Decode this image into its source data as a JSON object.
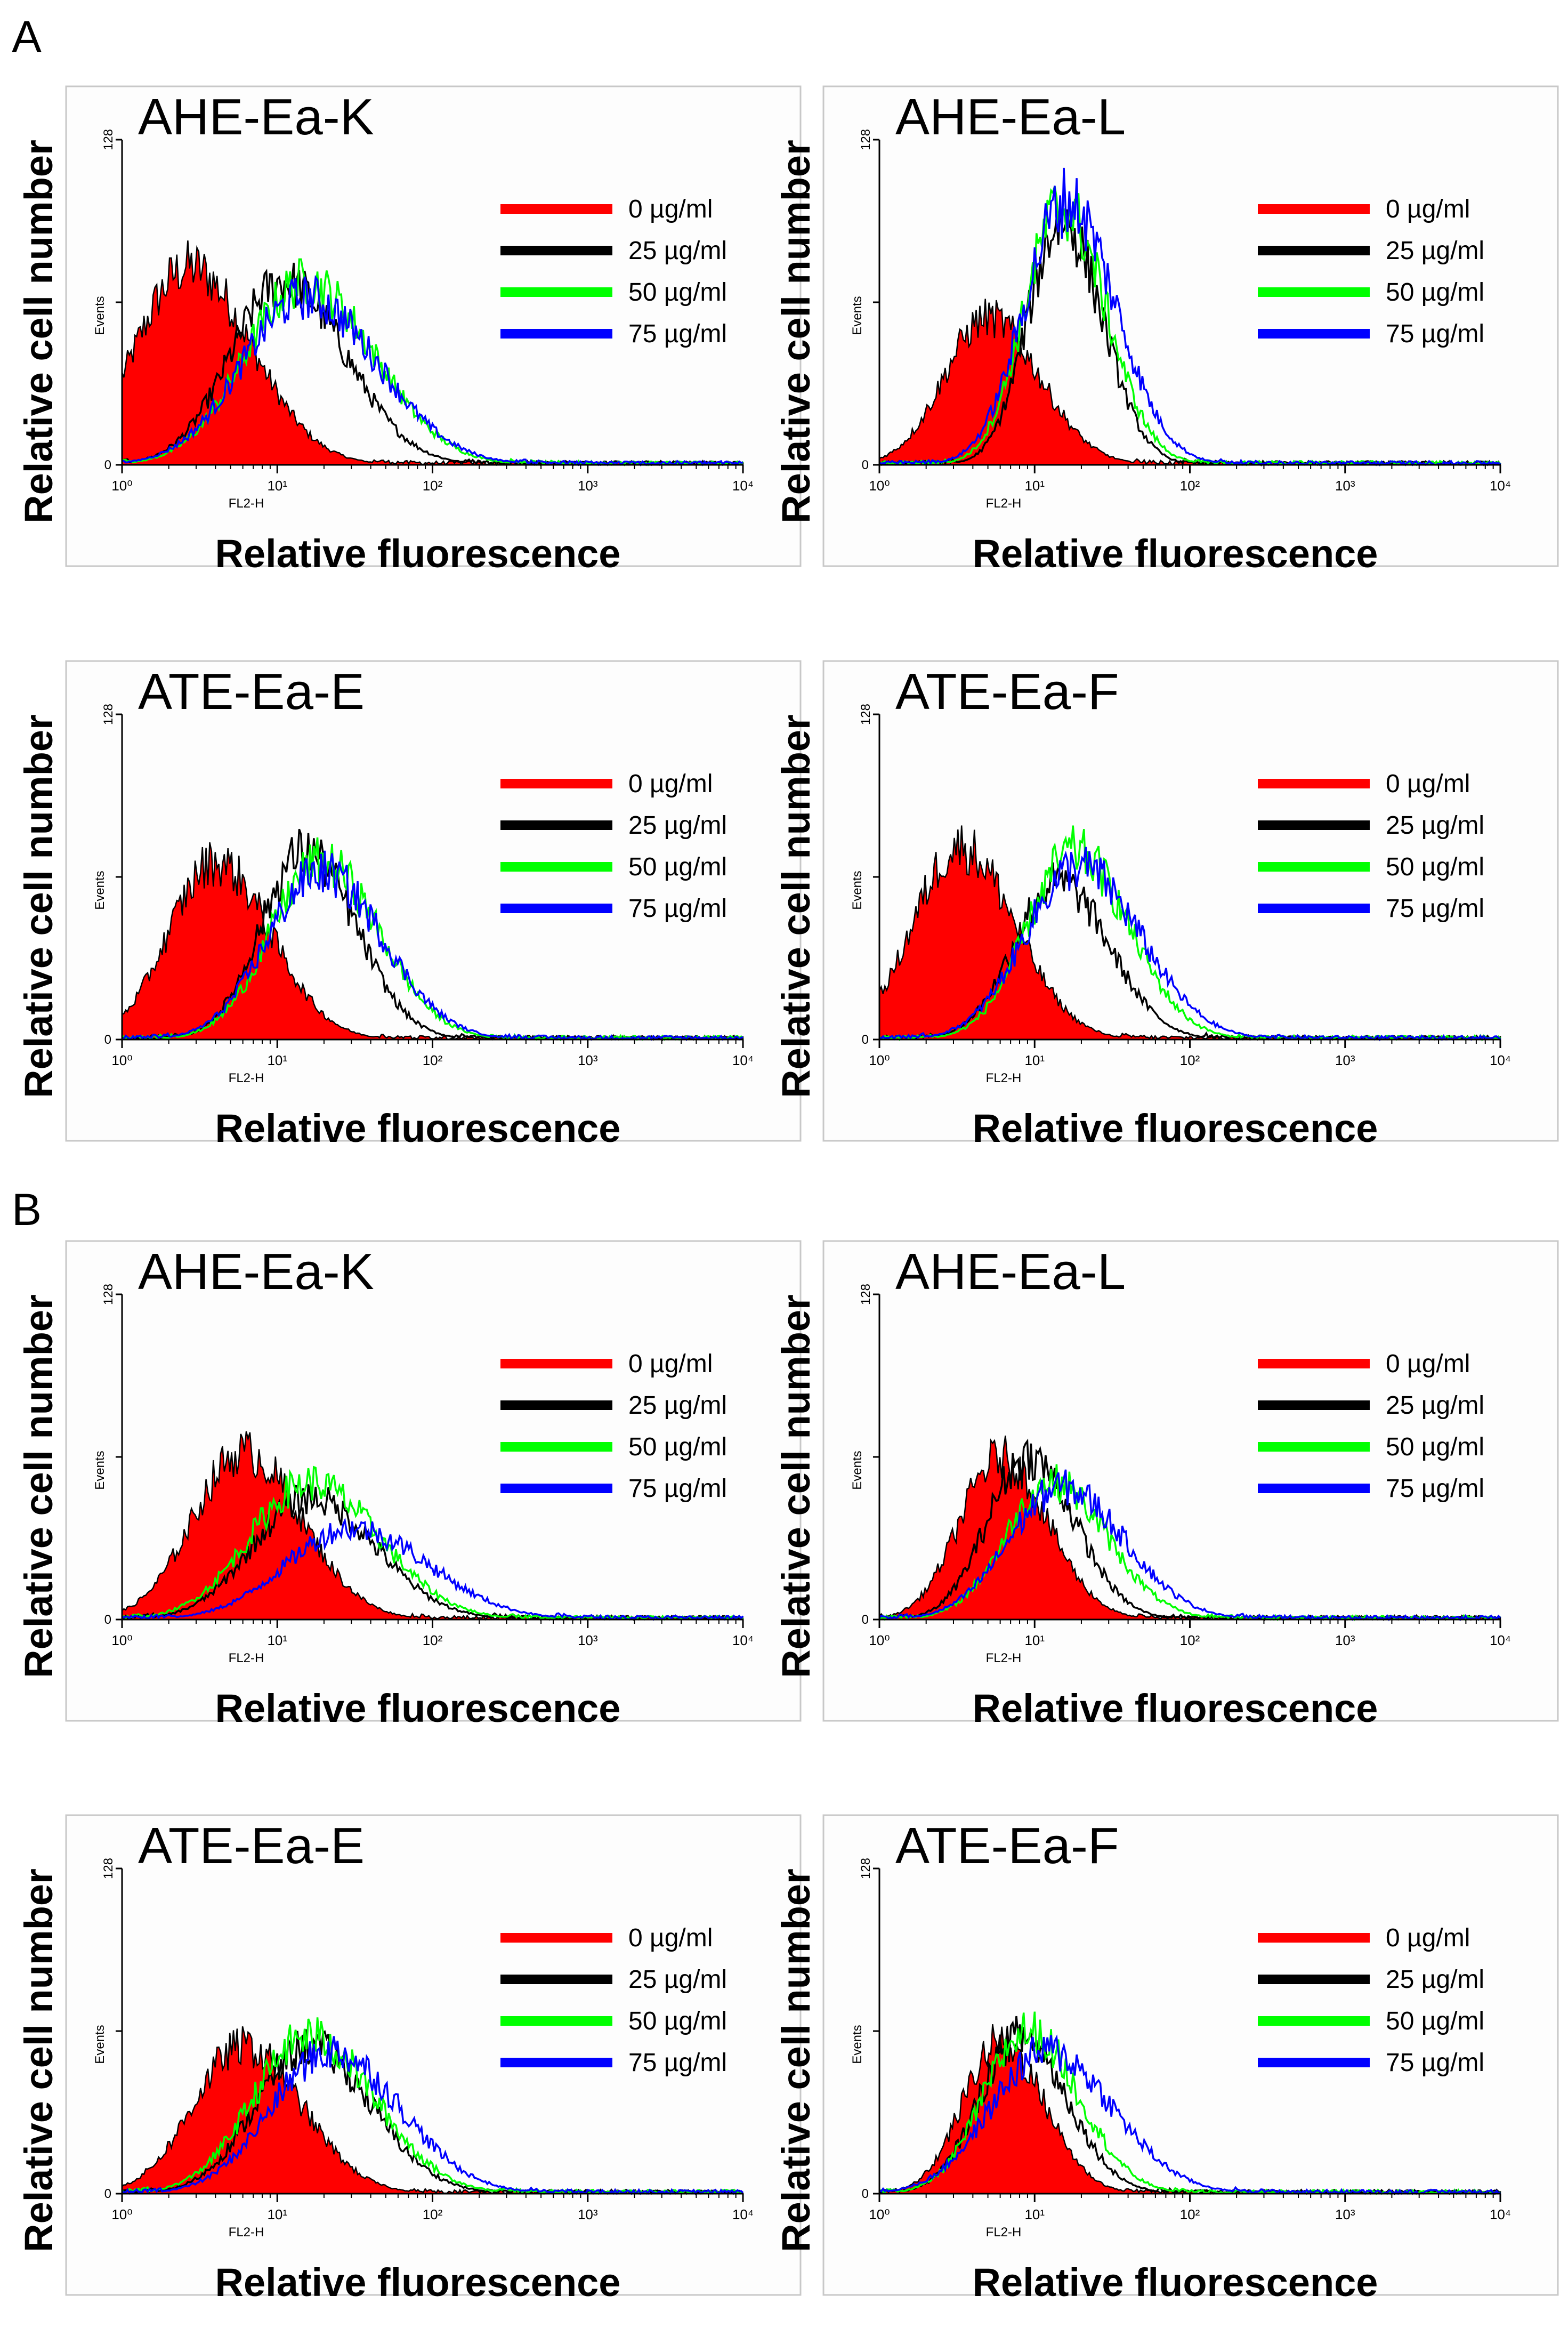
{
  "panel_letters": [
    "A",
    "B"
  ],
  "legend_entries": [
    {
      "label": "0 µg/ml",
      "color": "#ff0000"
    },
    {
      "label": "25 µg/ml",
      "color": "#000000"
    },
    {
      "label": "50 µg/ml",
      "color": "#00ff00"
    },
    {
      "label": "75 µg/ml",
      "color": "#0000ff"
    }
  ],
  "chart_data": [
    {
      "type": "area",
      "panel": "A",
      "title": "AHE-Ea-K",
      "xlabel": "Relative fluorescence",
      "ylabel": "Relative cell number",
      "instrument_xlabel": "FL2-H",
      "instrument_ylabel": "Events",
      "x_scale": "log",
      "xlim": [
        1,
        10000
      ],
      "ylim": [
        0,
        128
      ],
      "x_ticks": [
        "10⁰",
        "10¹",
        "10²",
        "10³",
        "10⁴"
      ],
      "y_ticks": [
        "0",
        "128"
      ],
      "series": [
        {
          "name": "0 µg/ml",
          "peak_x": 2.7,
          "peak_y": 78,
          "width": 0.34,
          "fill": true
        },
        {
          "name": "25 µg/ml",
          "peak_x": 11,
          "peak_y": 72,
          "width": 0.34
        },
        {
          "name": "50 µg/ml",
          "peak_x": 15,
          "peak_y": 72,
          "width": 0.38
        },
        {
          "name": "75 µg/ml",
          "peak_x": 15,
          "peak_y": 66,
          "width": 0.4
        }
      ]
    },
    {
      "type": "area",
      "panel": "A",
      "title": "AHE-Ea-L",
      "xlabel": "Relative fluorescence",
      "ylabel": "Relative cell number",
      "instrument_xlabel": "FL2-H",
      "instrument_ylabel": "Events",
      "x_scale": "log",
      "xlim": [
        1,
        10000
      ],
      "ylim": [
        0,
        128
      ],
      "x_ticks": [
        "10⁰",
        "10¹",
        "10²",
        "10³",
        "10⁴"
      ],
      "y_ticks": [
        "0",
        "128"
      ],
      "series": [
        {
          "name": "0 µg/ml",
          "peak_x": 5,
          "peak_y": 58,
          "width": 0.28,
          "fill": true
        },
        {
          "name": "25 µg/ml",
          "peak_x": 15,
          "peak_y": 96,
          "width": 0.22
        },
        {
          "name": "50 µg/ml",
          "peak_x": 15,
          "peak_y": 102,
          "width": 0.24
        },
        {
          "name": "75 µg/ml",
          "peak_x": 16,
          "peak_y": 104,
          "width": 0.27
        }
      ]
    },
    {
      "type": "area",
      "panel": "A",
      "title": "ATE-Ea-E",
      "xlabel": "Relative fluorescence",
      "ylabel": "Relative cell number",
      "instrument_xlabel": "FL2-H",
      "instrument_ylabel": "Events",
      "x_scale": "log",
      "xlim": [
        1,
        10000
      ],
      "ylim": [
        0,
        128
      ],
      "x_ticks": [
        "10⁰",
        "10¹",
        "10²",
        "10³",
        "10⁴"
      ],
      "y_ticks": [
        "0",
        "128"
      ],
      "series": [
        {
          "name": "0 µg/ml",
          "peak_x": 4,
          "peak_y": 70,
          "width": 0.3,
          "fill": true
        },
        {
          "name": "25 µg/ml",
          "peak_x": 15,
          "peak_y": 74,
          "width": 0.28
        },
        {
          "name": "50 µg/ml",
          "peak_x": 19,
          "peak_y": 70,
          "width": 0.32
        },
        {
          "name": "75 µg/ml",
          "peak_x": 19,
          "peak_y": 66,
          "width": 0.34
        }
      ]
    },
    {
      "type": "area",
      "panel": "A",
      "title": "ATE-Ea-F",
      "xlabel": "Relative fluorescence",
      "ylabel": "Relative cell number",
      "instrument_xlabel": "FL2-H",
      "instrument_ylabel": "Events",
      "x_scale": "log",
      "xlim": [
        1,
        10000
      ],
      "ylim": [
        0,
        128
      ],
      "x_ticks": [
        "10⁰",
        "10¹",
        "10²",
        "10³",
        "10⁴"
      ],
      "y_ticks": [
        "0",
        "128"
      ],
      "series": [
        {
          "name": "0 µg/ml",
          "peak_x": 3.3,
          "peak_y": 76,
          "width": 0.3,
          "fill": true
        },
        {
          "name": "25 µg/ml",
          "peak_x": 14,
          "peak_y": 62,
          "width": 0.28
        },
        {
          "name": "50 µg/ml",
          "peak_x": 18,
          "peak_y": 74,
          "width": 0.3
        },
        {
          "name": "75 µg/ml",
          "peak_x": 19,
          "peak_y": 68,
          "width": 0.34
        }
      ]
    },
    {
      "type": "area",
      "panel": "B",
      "title": "AHE-Ea-K",
      "xlabel": "Relative fluorescence",
      "ylabel": "Relative cell number",
      "instrument_xlabel": "FL2-H",
      "instrument_ylabel": "Events",
      "x_scale": "log",
      "xlim": [
        1,
        10000
      ],
      "ylim": [
        0,
        128
      ],
      "x_ticks": [
        "10⁰",
        "10¹",
        "10²",
        "10³",
        "10⁴"
      ],
      "y_ticks": [
        "0",
        "128"
      ],
      "series": [
        {
          "name": "0 µg/ml",
          "peak_x": 6,
          "peak_y": 66,
          "width": 0.32,
          "fill": true
        },
        {
          "name": "25 µg/ml",
          "peak_x": 16,
          "peak_y": 48,
          "width": 0.36
        },
        {
          "name": "50 µg/ml",
          "peak_x": 16,
          "peak_y": 54,
          "width": 0.38
        },
        {
          "name": "75 µg/ml",
          "peak_x": 30,
          "peak_y": 36,
          "width": 0.42
        }
      ]
    },
    {
      "type": "area",
      "panel": "B",
      "title": "AHE-Ea-L",
      "xlabel": "Relative fluorescence",
      "ylabel": "Relative cell number",
      "instrument_xlabel": "FL2-H",
      "instrument_ylabel": "Events",
      "x_scale": "log",
      "xlim": [
        1,
        10000
      ],
      "ylim": [
        0,
        128
      ],
      "x_ticks": [
        "10⁰",
        "10¹",
        "10²",
        "10³",
        "10⁴"
      ],
      "y_ticks": [
        "0",
        "128"
      ],
      "series": [
        {
          "name": "0 µg/ml",
          "peak_x": 6,
          "peak_y": 64,
          "width": 0.26,
          "fill": true
        },
        {
          "name": "25 µg/ml",
          "peak_x": 9,
          "peak_y": 64,
          "width": 0.26
        },
        {
          "name": "50 µg/ml",
          "peak_x": 13,
          "peak_y": 54,
          "width": 0.3
        },
        {
          "name": "75 µg/ml",
          "peak_x": 15,
          "peak_y": 52,
          "width": 0.34
        }
      ]
    },
    {
      "type": "area",
      "panel": "B",
      "title": "ATE-Ea-E",
      "xlabel": "Relative fluorescence",
      "ylabel": "Relative cell number",
      "instrument_xlabel": "FL2-H",
      "instrument_ylabel": "Events",
      "x_scale": "log",
      "xlim": [
        1,
        10000
      ],
      "ylim": [
        0,
        128
      ],
      "x_ticks": [
        "10⁰",
        "10¹",
        "10²",
        "10³",
        "10⁴"
      ],
      "y_ticks": [
        "0",
        "128"
      ],
      "series": [
        {
          "name": "0 µg/ml",
          "peak_x": 6,
          "peak_y": 58,
          "width": 0.32,
          "fill": true
        },
        {
          "name": "25 µg/ml",
          "peak_x": 16,
          "peak_y": 58,
          "width": 0.34
        },
        {
          "name": "50 µg/ml",
          "peak_x": 16,
          "peak_y": 62,
          "width": 0.36
        },
        {
          "name": "75 µg/ml",
          "peak_x": 22,
          "peak_y": 56,
          "width": 0.38
        }
      ]
    },
    {
      "type": "area",
      "panel": "B",
      "title": "ATE-Ea-F",
      "xlabel": "Relative fluorescence",
      "ylabel": "Relative cell number",
      "instrument_xlabel": "FL2-H",
      "instrument_ylabel": "Events",
      "x_scale": "log",
      "xlim": [
        1,
        10000
      ],
      "ylim": [
        0,
        128
      ],
      "x_ticks": [
        "10⁰",
        "10¹",
        "10²",
        "10³",
        "10⁴"
      ],
      "y_ticks": [
        "0",
        "128"
      ],
      "series": [
        {
          "name": "0 µg/ml",
          "peak_x": 6,
          "peak_y": 60,
          "width": 0.24,
          "fill": true
        },
        {
          "name": "25 µg/ml",
          "peak_x": 8,
          "peak_y": 62,
          "width": 0.26
        },
        {
          "name": "50 µg/ml",
          "peak_x": 9,
          "peak_y": 64,
          "width": 0.28
        },
        {
          "name": "75 µg/ml",
          "peak_x": 12,
          "peak_y": 56,
          "width": 0.36
        }
      ]
    }
  ]
}
